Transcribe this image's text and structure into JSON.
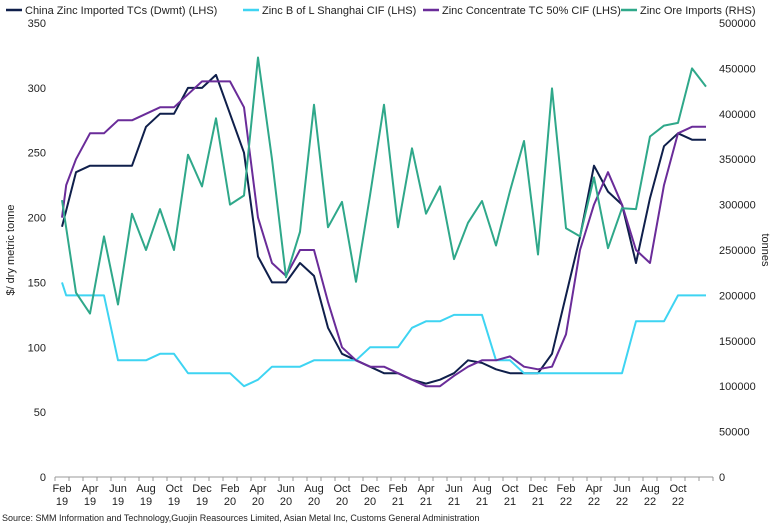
{
  "chart_data": {
    "type": "line",
    "title": "",
    "ylabel": "$/ dry metric tonne",
    "y2label": "tonnes",
    "xlabel": "",
    "ylim": [
      0,
      350
    ],
    "y2lim": [
      0,
      500000
    ],
    "yticks": [
      0,
      50,
      100,
      150,
      200,
      250,
      300,
      350
    ],
    "y2ticks": [
      0,
      50000,
      100000,
      150000,
      200000,
      250000,
      300000,
      350000,
      400000,
      450000,
      500000
    ],
    "x_count": 47,
    "xticks": [
      {
        "i": 0,
        "month": "Feb",
        "year": "19"
      },
      {
        "i": 2,
        "month": "Apr",
        "year": "19"
      },
      {
        "i": 4,
        "month": "Jun",
        "year": "19"
      },
      {
        "i": 6,
        "month": "Aug",
        "year": "19"
      },
      {
        "i": 8,
        "month": "Oct",
        "year": "19"
      },
      {
        "i": 10,
        "month": "Dec",
        "year": "19"
      },
      {
        "i": 12,
        "month": "Feb",
        "year": "20"
      },
      {
        "i": 14,
        "month": "Apr",
        "year": "20"
      },
      {
        "i": 16,
        "month": "Jun",
        "year": "20"
      },
      {
        "i": 18,
        "month": "Aug",
        "year": "20"
      },
      {
        "i": 20,
        "month": "Oct",
        "year": "20"
      },
      {
        "i": 22,
        "month": "Dec",
        "year": "20"
      },
      {
        "i": 24,
        "month": "Feb",
        "year": "21"
      },
      {
        "i": 26,
        "month": "Apr",
        "year": "21"
      },
      {
        "i": 28,
        "month": "Jun",
        "year": "21"
      },
      {
        "i": 30,
        "month": "Aug",
        "year": "21"
      },
      {
        "i": 32,
        "month": "Oct",
        "year": "21"
      },
      {
        "i": 34,
        "month": "Dec",
        "year": "21"
      },
      {
        "i": 36,
        "month": "Feb",
        "year": "22"
      },
      {
        "i": 38,
        "month": "Apr",
        "year": "22"
      },
      {
        "i": 40,
        "month": "Jun",
        "year": "22"
      },
      {
        "i": 42,
        "month": "Aug",
        "year": "22"
      },
      {
        "i": 44,
        "month": "Oct",
        "year": "22"
      }
    ],
    "series": [
      {
        "name": "China Zinc Imported TCs (Dwmt) (LHS)",
        "axis": "left",
        "color": "#0f1f4b",
        "points": [
          [
            0,
            193
          ],
          [
            1,
            235
          ],
          [
            2,
            240
          ],
          [
            3,
            240
          ],
          [
            4,
            240
          ],
          [
            5,
            240
          ],
          [
            6,
            270
          ],
          [
            7,
            280
          ],
          [
            8,
            280
          ],
          [
            9,
            300
          ],
          [
            10,
            300
          ],
          [
            11,
            310
          ],
          [
            12,
            280
          ],
          [
            13,
            250
          ],
          [
            14,
            170
          ],
          [
            15,
            150
          ],
          [
            16,
            150
          ],
          [
            17,
            165
          ],
          [
            18,
            155
          ],
          [
            19,
            115
          ],
          [
            20,
            95
          ],
          [
            21,
            90
          ],
          [
            22,
            85
          ],
          [
            23,
            80
          ],
          [
            24,
            80
          ],
          [
            25,
            75
          ],
          [
            26,
            72
          ],
          [
            27,
            75
          ],
          [
            28,
            80
          ],
          [
            29,
            90
          ],
          [
            30,
            88
          ],
          [
            31,
            83
          ],
          [
            32,
            80
          ],
          [
            33,
            80
          ],
          [
            34,
            80
          ],
          [
            35,
            95
          ],
          [
            36,
            140
          ],
          [
            37,
            185
          ],
          [
            38,
            240
          ],
          [
            39,
            220
          ],
          [
            40,
            210
          ],
          [
            41,
            165
          ],
          [
            42,
            215
          ],
          [
            43,
            255
          ],
          [
            44,
            265
          ],
          [
            45,
            260
          ],
          [
            46,
            260
          ]
        ]
      },
      {
        "name": "Zinc B of L Shanghai CIF (LHS)",
        "axis": "left",
        "color": "#3ed4f2",
        "points": [
          [
            0,
            150
          ],
          [
            0.3,
            140
          ],
          [
            1,
            140
          ],
          [
            2,
            140
          ],
          [
            3,
            140
          ],
          [
            4,
            90
          ],
          [
            5,
            90
          ],
          [
            6,
            90
          ],
          [
            7,
            95
          ],
          [
            8,
            95
          ],
          [
            9,
            80
          ],
          [
            10,
            80
          ],
          [
            11,
            80
          ],
          [
            12,
            80
          ],
          [
            13,
            70
          ],
          [
            14,
            75
          ],
          [
            15,
            85
          ],
          [
            16,
            85
          ],
          [
            17,
            85
          ],
          [
            18,
            90
          ],
          [
            19,
            90
          ],
          [
            20,
            90
          ],
          [
            21,
            90
          ],
          [
            22,
            100
          ],
          [
            23,
            100
          ],
          [
            24,
            100
          ],
          [
            25,
            115
          ],
          [
            26,
            120
          ],
          [
            27,
            120
          ],
          [
            28,
            125
          ],
          [
            29,
            125
          ],
          [
            30,
            125
          ],
          [
            31,
            90
          ],
          [
            32,
            90
          ],
          [
            33,
            80
          ],
          [
            34,
            80
          ],
          [
            35,
            80
          ],
          [
            36,
            80
          ],
          [
            37,
            80
          ],
          [
            38,
            80
          ],
          [
            39,
            80
          ],
          [
            40,
            80
          ],
          [
            41,
            120
          ],
          [
            42,
            120
          ],
          [
            43,
            120
          ],
          [
            44,
            140
          ],
          [
            45,
            140
          ],
          [
            46,
            140
          ]
        ]
      },
      {
        "name": "Zinc Concentrate TC 50% CIF (LHS)",
        "axis": "left",
        "color": "#6a2c99",
        "points": [
          [
            0,
            200
          ],
          [
            0.3,
            225
          ],
          [
            1,
            245
          ],
          [
            2,
            265
          ],
          [
            3,
            265
          ],
          [
            4,
            275
          ],
          [
            5,
            275
          ],
          [
            6,
            280
          ],
          [
            7,
            285
          ],
          [
            8,
            285
          ],
          [
            9,
            295
          ],
          [
            10,
            305
          ],
          [
            11,
            305
          ],
          [
            12,
            305
          ],
          [
            13,
            285
          ],
          [
            14,
            200
          ],
          [
            15,
            165
          ],
          [
            16,
            155
          ],
          [
            17,
            175
          ],
          [
            18,
            175
          ],
          [
            19,
            135
          ],
          [
            20,
            100
          ],
          [
            21,
            90
          ],
          [
            22,
            85
          ],
          [
            23,
            85
          ],
          [
            24,
            80
          ],
          [
            25,
            75
          ],
          [
            26,
            70
          ],
          [
            27,
            70
          ],
          [
            28,
            78
          ],
          [
            29,
            85
          ],
          [
            30,
            90
          ],
          [
            31,
            90
          ],
          [
            32,
            93
          ],
          [
            33,
            85
          ],
          [
            34,
            83
          ],
          [
            35,
            85
          ],
          [
            36,
            110
          ],
          [
            37,
            175
          ],
          [
            38,
            210
          ],
          [
            39,
            235
          ],
          [
            40,
            210
          ],
          [
            41,
            175
          ],
          [
            42,
            165
          ],
          [
            43,
            225
          ],
          [
            44,
            265
          ],
          [
            45,
            270
          ],
          [
            46,
            270
          ]
        ]
      },
      {
        "name": "Zinc Ore Imports (RHS)",
        "axis": "right",
        "color": "#2fa88a",
        "points": [
          [
            0,
            305000
          ],
          [
            1,
            203000
          ],
          [
            2,
            180000
          ],
          [
            3,
            265000
          ],
          [
            4,
            190000
          ],
          [
            5,
            290000
          ],
          [
            6,
            250000
          ],
          [
            7,
            295000
          ],
          [
            8,
            250000
          ],
          [
            9,
            355000
          ],
          [
            10,
            320000
          ],
          [
            11,
            395000
          ],
          [
            12,
            300000
          ],
          [
            13,
            310000
          ],
          [
            14,
            462000
          ],
          [
            15,
            350000
          ],
          [
            16,
            220000
          ],
          [
            17,
            270000
          ],
          [
            18,
            410000
          ],
          [
            19,
            275000
          ],
          [
            20,
            303000
          ],
          [
            21,
            215000
          ],
          [
            22,
            310000
          ],
          [
            23,
            410000
          ],
          [
            24,
            275000
          ],
          [
            25,
            362000
          ],
          [
            26,
            290000
          ],
          [
            27,
            320000
          ],
          [
            28,
            240000
          ],
          [
            29,
            280000
          ],
          [
            30,
            304000
          ],
          [
            31,
            255000
          ],
          [
            32,
            315000
          ],
          [
            33,
            370000
          ],
          [
            34,
            245000
          ],
          [
            35,
            428000
          ],
          [
            36,
            274000
          ],
          [
            37,
            265000
          ],
          [
            38,
            330000
          ],
          [
            39,
            252000
          ],
          [
            40,
            296000
          ],
          [
            41,
            295000
          ],
          [
            42,
            375000
          ],
          [
            43,
            387000
          ],
          [
            44,
            390000
          ],
          [
            45,
            450000
          ],
          [
            46,
            430000
          ]
        ]
      }
    ],
    "legend": [
      {
        "label": "China Zinc Imported TCs (Dwmt) (LHS)",
        "color": "#0f1f4b"
      },
      {
        "label": "Zinc B of L Shanghai CIF (LHS)",
        "color": "#3ed4f2"
      },
      {
        "label": "Zinc Concentrate TC 50% CIF (LHS)",
        "color": "#6a2c99"
      },
      {
        "label": "Zinc Ore Imports (RHS)",
        "color": "#2fa88a"
      }
    ]
  },
  "source": "Source: SMM Information and  Technology,Guojin Reasources Limited, Asian Metal Inc, Customs General Administration"
}
